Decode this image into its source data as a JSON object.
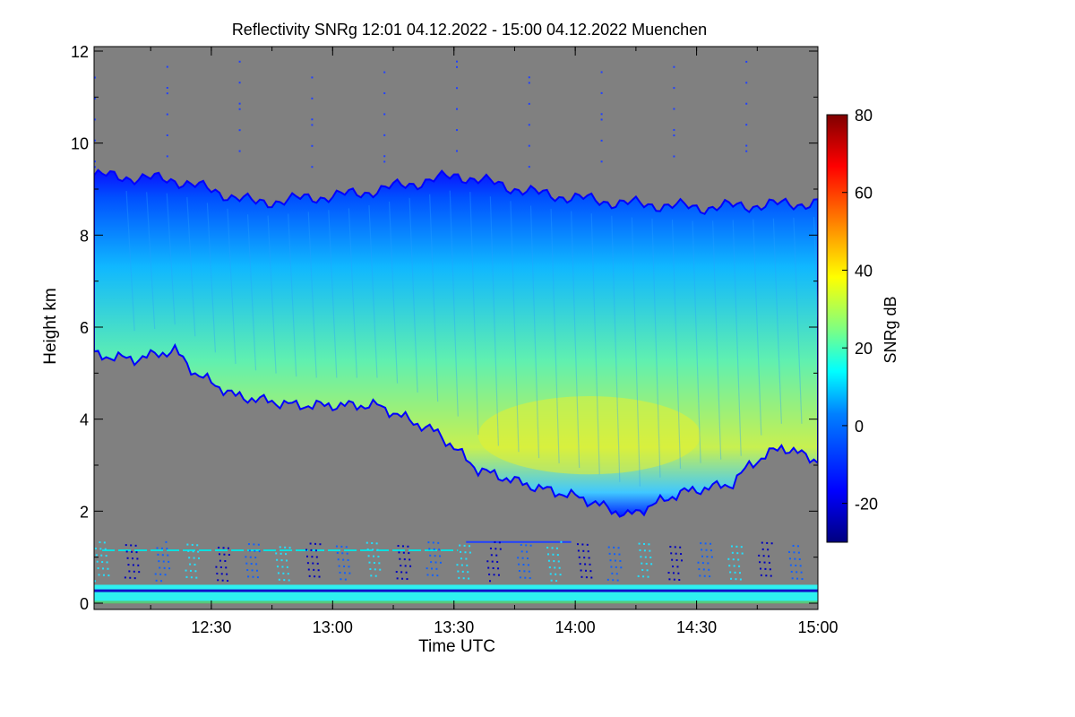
{
  "chart_data": {
    "type": "heatmap",
    "title": "Reflectivity SNRg   12:01 04.12.2022 - 15:00 04.12.2022 Muenchen",
    "xlabel": "Time UTC",
    "ylabel": "Height km",
    "xlim": [
      "12:01",
      "15:00"
    ],
    "ylim": [
      0,
      12
    ],
    "x_tick_labels": [
      "12:30",
      "13:00",
      "13:30",
      "14:00",
      "14:30",
      "15:00"
    ],
    "x_ticks_minutes": [
      29,
      59,
      89,
      119,
      149,
      179
    ],
    "y_tick_labels": [
      "0",
      "2",
      "4",
      "6",
      "8",
      "10",
      "12"
    ],
    "y_ticks": [
      0,
      2,
      4,
      6,
      8,
      10,
      12
    ],
    "colorbar": {
      "label": "SNRg dB",
      "range": [
        -30,
        80
      ],
      "tick_labels": [
        "-20",
        "0",
        "20",
        "40",
        "60",
        "80"
      ],
      "ticks": [
        -20,
        0,
        20,
        40,
        60,
        80
      ],
      "colormap": [
        "#00007f",
        "#0000ff",
        "#0080ff",
        "#00ffff",
        "#80ff80",
        "#ffff00",
        "#ff8000",
        "#ff0000",
        "#7f0000"
      ]
    },
    "background_color": "#808080",
    "cloud": {
      "description_fields": "cloud top and base heights (km) vs time (minutes after 12:01)",
      "top_km": [
        [
          0,
          9.3
        ],
        [
          20,
          9.2
        ],
        [
          40,
          8.7
        ],
        [
          65,
          8.9
        ],
        [
          90,
          9.3
        ],
        [
          110,
          8.9
        ],
        [
          130,
          8.7
        ],
        [
          150,
          8.6
        ],
        [
          179,
          8.7
        ]
      ],
      "base_km": [
        [
          0,
          5.4
        ],
        [
          10,
          5.3
        ],
        [
          20,
          5.5
        ],
        [
          25,
          5.0
        ],
        [
          35,
          4.5
        ],
        [
          50,
          4.3
        ],
        [
          70,
          4.3
        ],
        [
          85,
          3.7
        ],
        [
          95,
          2.9
        ],
        [
          110,
          2.5
        ],
        [
          120,
          2.3
        ],
        [
          132,
          1.9
        ],
        [
          145,
          2.4
        ],
        [
          158,
          2.6
        ],
        [
          162,
          3.0
        ],
        [
          170,
          3.4
        ],
        [
          179,
          3.1
        ]
      ],
      "max_dbz_region": {
        "time_min": [
          95,
          150
        ],
        "height_km": [
          2.8,
          4.5
        ],
        "snr_db": 35
      }
    },
    "ground_clutter_km": [
      0.0,
      0.4
    ],
    "noise_line_km": 1.15
  }
}
